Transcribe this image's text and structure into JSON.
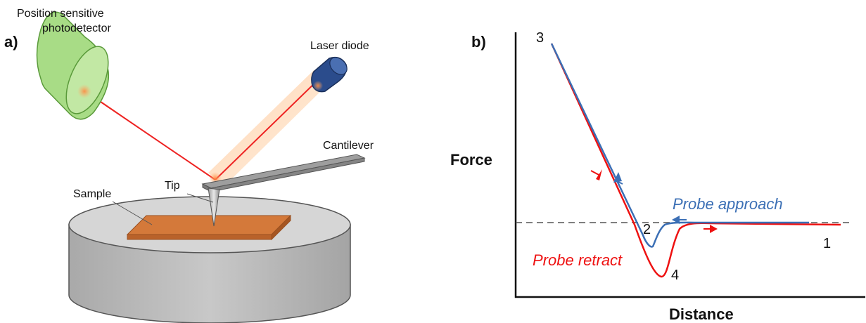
{
  "panel_a": {
    "panel_label": "a)",
    "photodetector_label_line1": "Position sensitive",
    "photodetector_label_line2": "photodetector",
    "laser_label": "Laser diode",
    "cantilever_label": "Cantilever",
    "tip_label": "Tip",
    "sample_label": "Sample"
  },
  "panel_b": {
    "panel_label": "b)",
    "y_axis_label": "Force",
    "x_axis_label": "Distance",
    "approach_label": "Probe approach",
    "retract_label": "Probe retract",
    "point_labels": [
      "1",
      "2",
      "3",
      "4"
    ],
    "colors": {
      "approach": "#3b6fb5",
      "retract": "#ee1111",
      "baseline": "#555555"
    }
  }
}
